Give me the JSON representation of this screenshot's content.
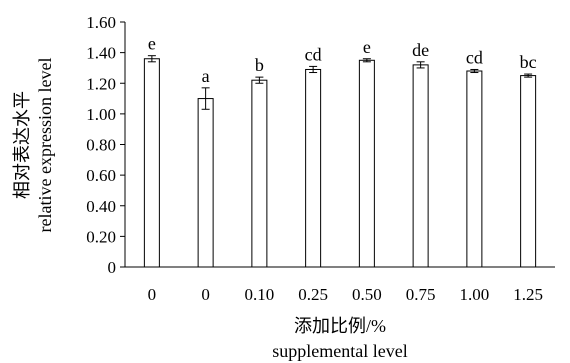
{
  "chart_data": {
    "type": "bar",
    "categories": [
      "0",
      "0",
      "0.10",
      "0.25",
      "0.50",
      "0.75",
      "1.00",
      "1.25"
    ],
    "values": [
      1.36,
      1.1,
      1.22,
      1.29,
      1.35,
      1.32,
      1.28,
      1.25
    ],
    "errors": [
      0.02,
      0.07,
      0.02,
      0.02,
      0.01,
      0.02,
      0.01,
      0.01
    ],
    "significance": [
      "e",
      "a",
      "b",
      "cd",
      "e",
      "de",
      "cd",
      "bc"
    ],
    "ylim": [
      0,
      1.6
    ],
    "yticks": [
      0,
      0.2,
      0.4,
      0.6,
      0.8,
      1.0,
      1.2,
      1.4,
      1.6
    ],
    "ytick_labels": [
      "0",
      "0.20",
      "0.40",
      "0.60",
      "0.80",
      "1.00",
      "1.20",
      "1.40",
      "1.60"
    ],
    "ylabel_cn": "相对表达水平",
    "ylabel_en": "relative expression level",
    "xlabel_cn": "添加比例/%",
    "xlabel_en": "supplemental level",
    "grid": false,
    "legend": "none",
    "colors": {
      "bar_fill": "#ffffff",
      "bar_stroke": "#000000",
      "axis": "#000000"
    }
  }
}
